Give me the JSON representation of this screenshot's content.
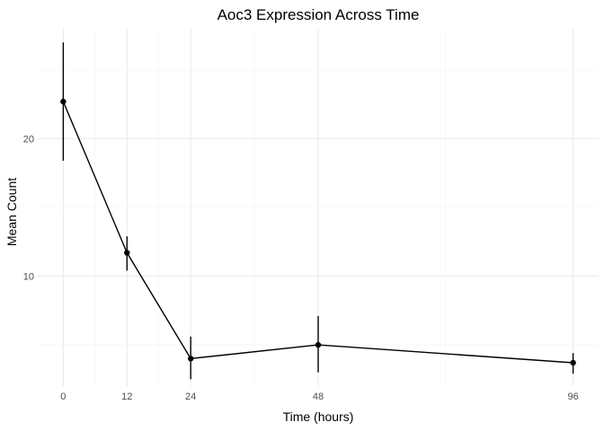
{
  "chart_data": {
    "type": "line",
    "title": "Aoc3 Expression Across Time",
    "xlabel": "Time (hours)",
    "ylabel": "Mean Count",
    "x": [
      0,
      12,
      24,
      48,
      96
    ],
    "x_ticks": [
      "0",
      "12",
      "24",
      "48",
      "96"
    ],
    "y_ticks": [
      "10",
      "20"
    ],
    "y_tick_values": [
      10,
      20
    ],
    "values": [
      22.7,
      11.7,
      4.0,
      5.0,
      3.7
    ],
    "error_low": [
      18.4,
      10.4,
      2.5,
      3.0,
      2.9
    ],
    "error_high": [
      27.0,
      12.9,
      5.6,
      7.1,
      4.4
    ],
    "ylim": [
      2.0,
      28.0
    ],
    "xlim": [
      -4.8,
      100.8
    ],
    "grid": true,
    "legend": "none"
  }
}
